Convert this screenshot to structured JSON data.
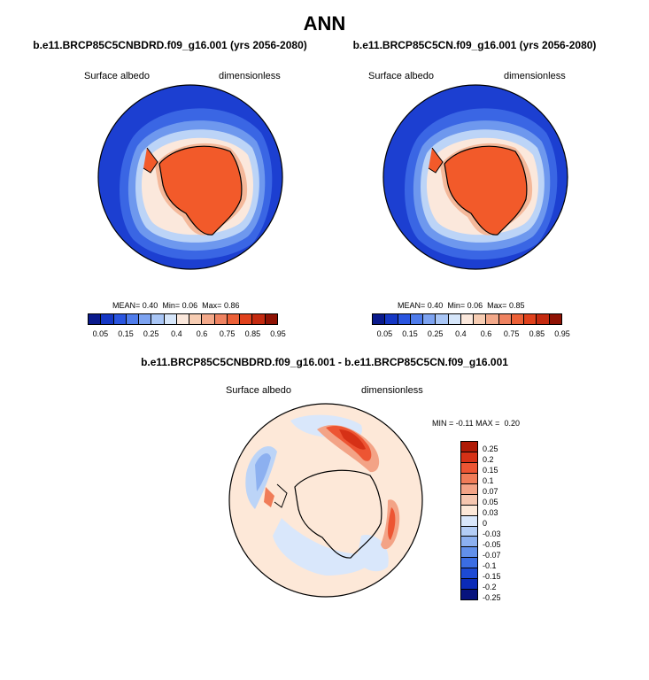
{
  "main_title": "ANN",
  "panels": [
    {
      "title": "b.e11.BRCP85C5CNBDRD.f09_g16.001 (yrs 2056-2080)",
      "variable": "Surface albedo",
      "units": "dimensionless",
      "stats": {
        "mean_label": "MEAN=",
        "mean": "0.40",
        "min_label": "Min=",
        "min": "0.06",
        "max_label": "Max=",
        "max": "0.86"
      }
    },
    {
      "title": "b.e11.BRCP85C5CN.f09_g16.001 (yrs 2056-2080)",
      "variable": "Surface albedo",
      "units": "dimensionless",
      "stats": {
        "mean_label": "MEAN=",
        "mean": "0.40",
        "min_label": "Min=",
        "min": "0.06",
        "max_label": "Max=",
        "max": "0.85"
      }
    }
  ],
  "diff_panel": {
    "title": "b.e11.BRCP85C5CNBDRD.f09_g16.001 - b.e11.BRCP85C5CN.f09_g16.001",
    "variable": "Surface albedo",
    "units": "dimensionless",
    "min_label": "MIN =",
    "min": "-0.11",
    "max_label": "MAX =",
    "max": "0.20"
  },
  "abs_colorbar": {
    "colors": [
      "#0a1a8c",
      "#1537c4",
      "#2a55e0",
      "#4f7ceb",
      "#7da3f1",
      "#a9c6f6",
      "#d6e6fa",
      "#fbe8dc",
      "#f7cdb3",
      "#f3a98a",
      "#ef8361",
      "#ec6037",
      "#e0411c",
      "#c42a10",
      "#8f1204"
    ],
    "tick_labels": [
      "0.05",
      "0.15",
      "0.25",
      "0.4",
      "0.6",
      "0.75",
      "0.85",
      "0.95"
    ]
  },
  "diff_colorbar": {
    "colors": [
      "#b01a06",
      "#d63116",
      "#ed5533",
      "#f07c58",
      "#f3a386",
      "#f6c6af",
      "#fde8d8",
      "#d9e7fb",
      "#b3cdf6",
      "#8cb0f0",
      "#6290ea",
      "#3b6de3",
      "#1d4ad4",
      "#0b2bb8",
      "#07137d"
    ],
    "labels": [
      "0.25",
      "0.2",
      "0.15",
      "0.1",
      "0.07",
      "0.05",
      "0.03",
      "0",
      "-0.03",
      "-0.05",
      "-0.07",
      "-0.1",
      "-0.15",
      "-0.2",
      "-0.25"
    ]
  }
}
